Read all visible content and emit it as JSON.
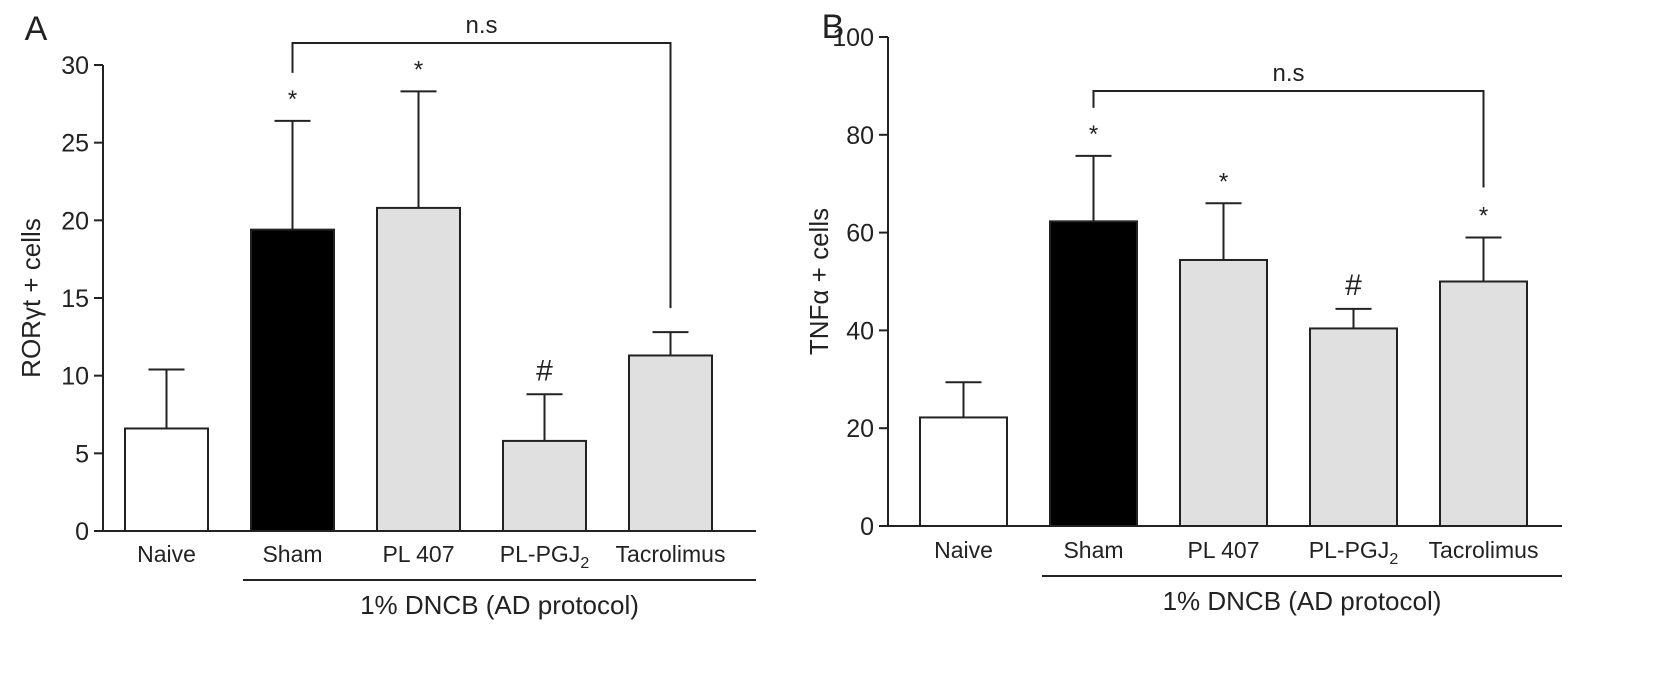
{
  "figure": {
    "colors": {
      "axis": "#222222",
      "sham": "#000000",
      "treated": "#e0e0e0",
      "naive": "#ffffff"
    },
    "group_label": "1%  DNCB (AD protocol)"
  },
  "chart_data": [
    {
      "type": "bar",
      "panel_label": "A",
      "ylabel": "RORγt + cells",
      "ylim": [
        0,
        30
      ],
      "yticks": [
        0,
        5,
        10,
        15,
        20,
        25,
        30
      ],
      "categories": [
        "Naive",
        "Sham",
        "PL 407",
        "PL-PGJ2",
        "Tacrolimus"
      ],
      "values": [
        6.6,
        19.4,
        20.8,
        5.8,
        11.3
      ],
      "errors": [
        3.8,
        7.0,
        7.5,
        3.0,
        1.5
      ],
      "fills": [
        "naive",
        "sham",
        "treated",
        "treated",
        "treated"
      ],
      "annotations": [
        "",
        "*",
        "*",
        "#",
        ""
      ],
      "comparison": {
        "from": "Sham",
        "to": "Tacrolimus",
        "label": "n.s"
      },
      "group_label": "1%  DNCB (AD protocol)"
    },
    {
      "type": "bar",
      "panel_label": "B",
      "ylabel": "TNFα + cells",
      "ylim": [
        0,
        100
      ],
      "yticks": [
        0,
        20,
        40,
        60,
        80,
        100
      ],
      "categories": [
        "Naive",
        "Sham",
        "PL 407",
        "PL-PGJ2",
        "Tacrolimus"
      ],
      "values": [
        22.2,
        62.3,
        54.4,
        40.4,
        50.0
      ],
      "errors": [
        7.2,
        13.4,
        11.6,
        4.0,
        9.0
      ],
      "fills": [
        "naive",
        "sham",
        "treated",
        "treated",
        "treated"
      ],
      "annotations": [
        "",
        "*",
        "*",
        "#",
        "*"
      ],
      "comparison": {
        "from": "Sham",
        "to": "Tacrolimus",
        "label": "n.s"
      },
      "group_label": "1%  DNCB (AD protocol)"
    }
  ]
}
